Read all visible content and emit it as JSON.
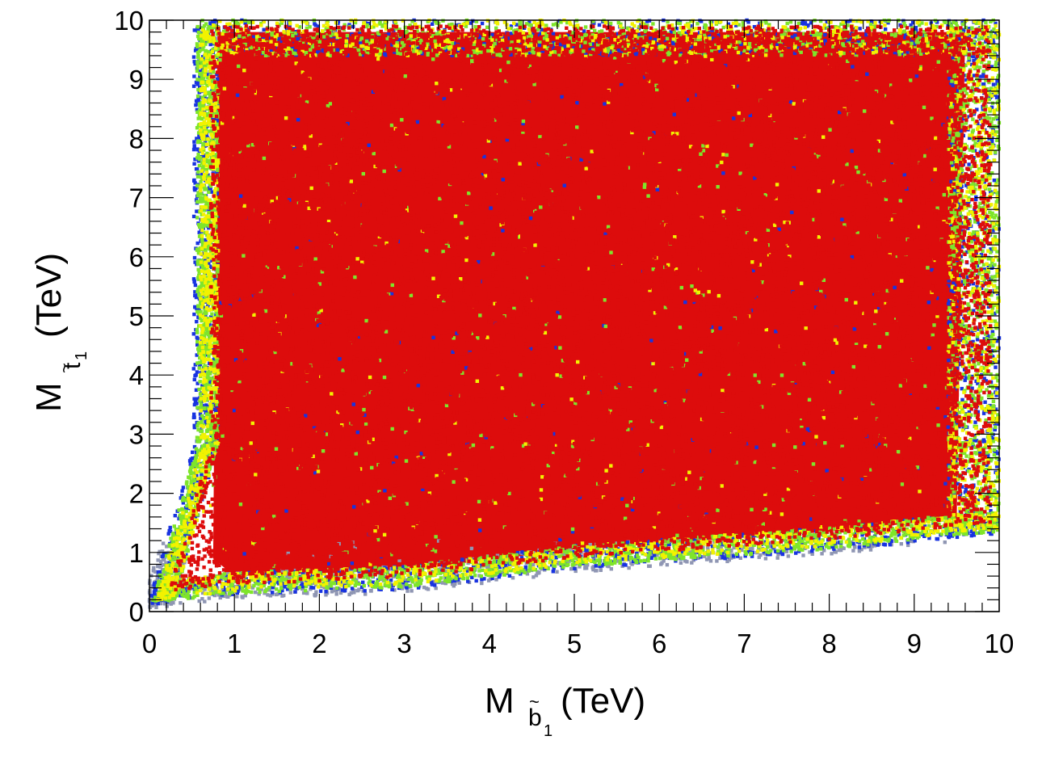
{
  "chart_data": {
    "type": "scatter",
    "title": "",
    "xlabel": {
      "symbol": "M",
      "subscript": "b",
      "subscript_index": "1",
      "accent": "~",
      "unit": "(TeV)"
    },
    "ylabel": {
      "symbol": "M",
      "subscript": "t",
      "subscript_index": "1",
      "accent": "~",
      "unit": "(TeV)"
    },
    "xlim": [
      0,
      10
    ],
    "ylim": [
      0,
      10
    ],
    "x_ticks": [
      "0",
      "1",
      "2",
      "3",
      "4",
      "5",
      "6",
      "7",
      "8",
      "9",
      "10"
    ],
    "y_ticks": [
      "0",
      "1",
      "2",
      "3",
      "4",
      "5",
      "6",
      "7",
      "8",
      "9",
      "10"
    ],
    "grid": false,
    "legend": "none",
    "series_colors": {
      "grey": "#8f96b3",
      "blue": "#1833e0",
      "green": "#7fe52a",
      "yellow": "#f2f200",
      "red": "#dd0c0c"
    },
    "regions": {
      "x_min_at_high_y": 0.6,
      "y_min_lower_edge": [
        {
          "x": 0.1,
          "y": 0.2
        },
        {
          "x": 1.0,
          "y": 0.35
        },
        {
          "x": 3.0,
          "y": 0.45
        },
        {
          "x": 5.0,
          "y": 0.8
        },
        {
          "x": 8.0,
          "y": 1.1
        },
        {
          "x": 10.0,
          "y": 1.4
        }
      ]
    }
  }
}
